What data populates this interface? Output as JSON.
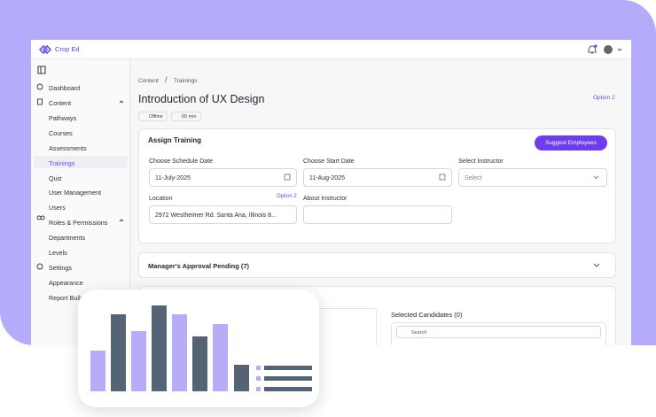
{
  "header": {
    "brand": "Crop Ed"
  },
  "sidebar": {
    "items": [
      "Dashboard",
      "Content",
      "Pathways",
      "Courses",
      "Assessments",
      "Trainings",
      "Quiz",
      "User Management",
      "Users",
      "Roles & Permissions",
      "Departments",
      "Levels",
      "Settings",
      "Appearance",
      "Report Builder"
    ]
  },
  "breadcrumb": [
    "Content",
    "Trainings"
  ],
  "page": {
    "title": "Introduction of UX Design",
    "option": "Option 2",
    "badges": [
      "Offline",
      "60 min"
    ]
  },
  "assign": {
    "title": "Assign Training",
    "button": "Suggest Employees",
    "fields": [
      {
        "label": "Choose Schedule Date",
        "value": "11-July-2025"
      },
      {
        "label": "Choose Start Date",
        "value": "11-Aug-2025"
      },
      {
        "label": "Select Instructor",
        "placeholder": "Select"
      },
      {
        "label": "Location",
        "option": "Option 2",
        "value": "2972 Westheimer Rd. Santa Ana, Illinois 8..."
      },
      {
        "label": "About Instructor"
      }
    ]
  },
  "approval": {
    "title": "Manager's Approval Pending (7)"
  },
  "candidates": {
    "title": "Selected Candidates (0)",
    "search": "Search"
  }
}
